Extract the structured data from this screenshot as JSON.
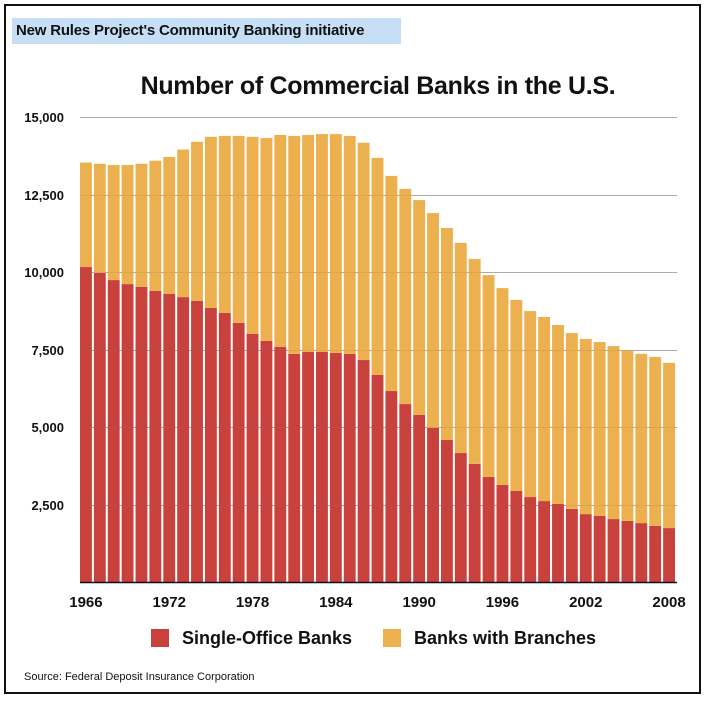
{
  "header": {
    "tag": "New Rules Project's Community Banking initiative"
  },
  "footer": {
    "source": "Source: Federal Deposit Insurance Corporation"
  },
  "colors": {
    "single_office": "#c8413c",
    "with_branches": "#edb04e",
    "tag_background": "#c7dff6",
    "gridline": "#b5b5b5"
  },
  "chart_data": {
    "type": "bar",
    "stacked": true,
    "title": "Number of Commercial Banks in the U.S.",
    "xlabel": "",
    "ylabel": "",
    "ylim": [
      0,
      15000
    ],
    "grid": true,
    "legend_position": "bottom",
    "yticks": [
      2500,
      5000,
      7500,
      10000,
      12500,
      15000
    ],
    "ytick_labels": [
      "2,500",
      "5,000",
      "7,500",
      "10,000",
      "12,500",
      "15,000"
    ],
    "xtick_labels": [
      "1966",
      "1972",
      "1978",
      "1984",
      "1990",
      "1996",
      "2002",
      "2008"
    ],
    "categories": [
      1966,
      1967,
      1968,
      1969,
      1970,
      1971,
      1972,
      1973,
      1974,
      1975,
      1976,
      1977,
      1978,
      1979,
      1980,
      1981,
      1982,
      1983,
      1984,
      1985,
      1986,
      1987,
      1988,
      1989,
      1990,
      1991,
      1992,
      1993,
      1994,
      1995,
      1996,
      1997,
      1998,
      1999,
      2000,
      2001,
      2002,
      2003,
      2004,
      2005,
      2006,
      2007,
      2008
    ],
    "series": [
      {
        "name": "Single-Office Banks",
        "color": "#c8413c",
        "values": [
          10160,
          9970,
          9740,
          9610,
          9520,
          9390,
          9290,
          9190,
          9070,
          8840,
          8680,
          8360,
          8000,
          7780,
          7580,
          7360,
          7420,
          7420,
          7390,
          7360,
          7160,
          6680,
          6160,
          5740,
          5390,
          4970,
          4580,
          4160,
          3810,
          3390,
          3130,
          2940,
          2740,
          2610,
          2520,
          2360,
          2190,
          2130,
          2030,
          1970,
          1900,
          1810,
          1740
        ]
      },
      {
        "name": "Banks with Branches",
        "color": "#edb04e",
        "values": [
          3370,
          3520,
          3710,
          3840,
          3970,
          4200,
          4420,
          4760,
          5130,
          5520,
          5710,
          6030,
          6360,
          6540,
          6840,
          7030,
          7000,
          7030,
          7060,
          7030,
          7010,
          7000,
          6940,
          6940,
          6930,
          6930,
          6840,
          6780,
          6610,
          6510,
          6350,
          6160,
          6000,
          5940,
          5770,
          5670,
          5650,
          5610,
          5580,
          5510,
          5460,
          5450,
          5330
        ]
      }
    ]
  }
}
